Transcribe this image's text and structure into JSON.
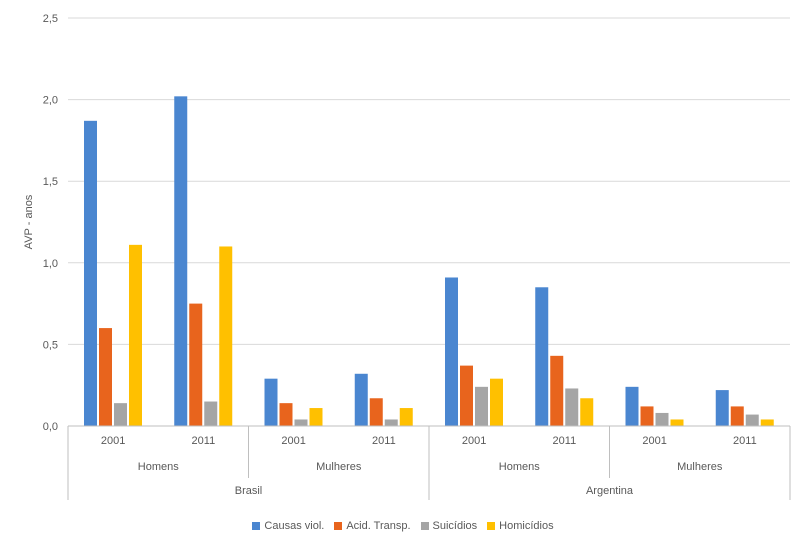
{
  "chart_data": {
    "type": "bar",
    "title": "",
    "ylabel": "AVP - anos",
    "ylim": [
      0,
      2.5
    ],
    "yticks": [
      "0,0",
      "0,5",
      "1,0",
      "1,5",
      "2,0",
      "2,5"
    ],
    "grid": true,
    "legend_position": "bottom",
    "categories": [
      "2001",
      "2011",
      "2001",
      "2011",
      "2001",
      "2011",
      "2001",
      "2011"
    ],
    "sex_groups": [
      "Homens",
      "Mulheres",
      "Homens",
      "Mulheres"
    ],
    "country_groups": [
      "Brasil",
      "Argentina"
    ],
    "series": [
      {
        "name": "Causas viol.",
        "color": "#4a86d0",
        "values": [
          1.87,
          2.02,
          0.29,
          0.32,
          0.91,
          0.85,
          0.24,
          0.22
        ]
      },
      {
        "name": "Acid. Transp.",
        "color": "#e8641d",
        "values": [
          0.6,
          0.75,
          0.14,
          0.17,
          0.37,
          0.43,
          0.12,
          0.12
        ]
      },
      {
        "name": "Suicídios",
        "color": "#a5a5a5",
        "values": [
          0.14,
          0.15,
          0.04,
          0.04,
          0.24,
          0.23,
          0.08,
          0.07
        ]
      },
      {
        "name": "Homicídios",
        "color": "#ffc000",
        "values": [
          1.11,
          1.1,
          0.11,
          0.11,
          0.29,
          0.17,
          0.04,
          0.04
        ]
      }
    ]
  }
}
